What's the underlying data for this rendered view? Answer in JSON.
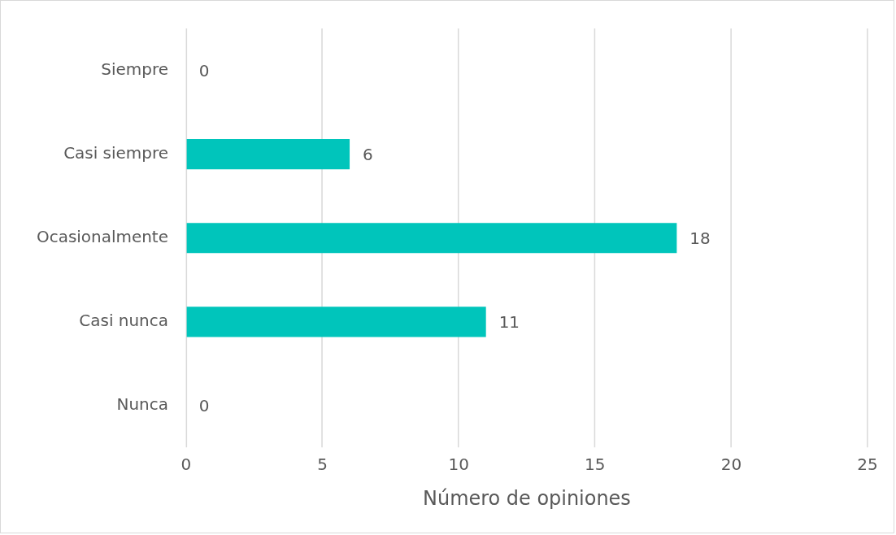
{
  "chart_data": {
    "type": "bar",
    "orientation": "horizontal",
    "categories": [
      "Siempre",
      "Casi siempre",
      "Ocasionalmente",
      "Casi nunca",
      "Nunca"
    ],
    "values": [
      0,
      6,
      18,
      11,
      0
    ],
    "color": "#00c5bb",
    "xlabel": "Número de opiniones",
    "xlim": [
      0,
      25
    ],
    "xticks": [
      0,
      5,
      10,
      15,
      20,
      25
    ],
    "grid": "x",
    "data_labels": true,
    "legend": false
  }
}
